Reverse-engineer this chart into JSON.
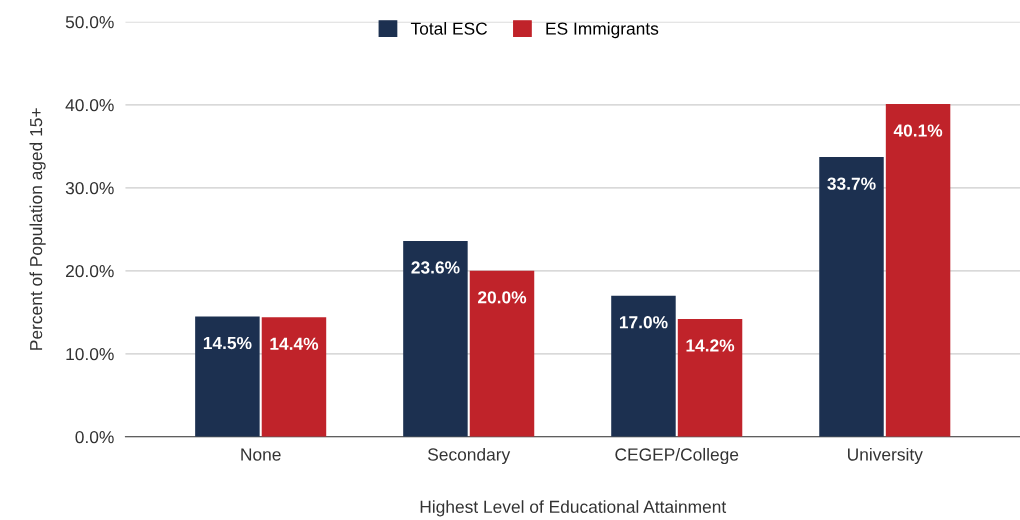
{
  "chart_data": {
    "type": "bar",
    "xlabel": "Highest Level of Educational Attainment",
    "ylabel": "Percent of Population aged 15+",
    "categories": [
      "None",
      "Secondary",
      "CEGEP/College",
      "University"
    ],
    "series": [
      {
        "name": "Total ESC",
        "color": "#1c3050",
        "values": [
          14.5,
          23.6,
          17.0,
          33.7
        ],
        "value_labels": [
          "14.5%",
          "23.6%",
          "17.0%",
          "33.7%"
        ]
      },
      {
        "name": "ES Immigrants",
        "color": "#c0232a",
        "values": [
          14.4,
          20.0,
          14.2,
          40.1
        ],
        "value_labels": [
          "14.4%",
          "20.0%",
          "14.2%",
          "40.1%"
        ]
      }
    ],
    "ylim": [
      0,
      50
    ],
    "yticks": [
      {
        "value": 0,
        "label": "0.0%"
      },
      {
        "value": 10,
        "label": "10.0%"
      },
      {
        "value": 20,
        "label": "20.0%"
      },
      {
        "value": 30,
        "label": "30.0%"
      },
      {
        "value": 40,
        "label": "40.0%"
      },
      {
        "value": 50,
        "label": "50.0%"
      }
    ],
    "grid": "y",
    "legend": "top"
  }
}
